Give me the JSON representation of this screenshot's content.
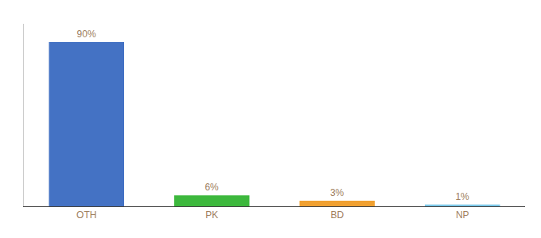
{
  "chart_data": {
    "type": "bar",
    "categories": [
      "OTH",
      "PK",
      "BD",
      "NP"
    ],
    "values": [
      90,
      6,
      3,
      1
    ],
    "value_labels": [
      "90%",
      "6%",
      "3%",
      "1%"
    ],
    "data_labels": true,
    "colors": [
      "#4472c4",
      "#3db83d",
      "#f0a030",
      "#7dc8e8"
    ],
    "ylim": [
      0,
      100
    ],
    "tick_labels": "x",
    "grid": false
  }
}
